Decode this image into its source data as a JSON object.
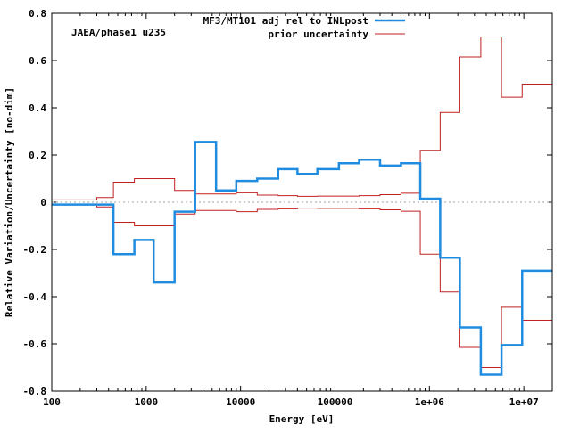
{
  "chart_data": {
    "type": "line",
    "title": "",
    "annotation": "JAEA/phase1 u235",
    "xlabel": "Energy [eV]",
    "ylabel": "Relative Variation/Uncertainty [no-dim]",
    "xscale": "log",
    "xlim": [
      100,
      20000000
    ],
    "ylim": [
      -0.8,
      0.8
    ],
    "x_ticks": [
      {
        "value": 100,
        "label": "100"
      },
      {
        "value": 1000,
        "label": "1000"
      },
      {
        "value": 10000,
        "label": "10000"
      },
      {
        "value": 100000,
        "label": "100000"
      },
      {
        "value": 1000000,
        "label": "1e+06"
      },
      {
        "value": 10000000,
        "label": "1e+07"
      }
    ],
    "y_ticks": [
      {
        "value": 0.8,
        "label": "0.8"
      },
      {
        "value": 0.6,
        "label": "0.6"
      },
      {
        "value": 0.4,
        "label": "0.4"
      },
      {
        "value": 0.2,
        "label": "0.2"
      },
      {
        "value": 0,
        "label": "0"
      },
      {
        "value": -0.2,
        "label": "-0.2"
      },
      {
        "value": -0.4,
        "label": "-0.4"
      },
      {
        "value": -0.6,
        "label": "-0.6"
      },
      {
        "value": -0.8,
        "label": "-0.8"
      }
    ],
    "legend_position": "top-right",
    "bin_edges": [
      100,
      300,
      450,
      750,
      1200,
      2000,
      3300,
      5500,
      9000,
      15000,
      25000,
      40000,
      65000,
      110000,
      180000,
      300000,
      500000,
      800000,
      1300000,
      2100000,
      3500000,
      5800000,
      9600000,
      20000000
    ],
    "series": [
      {
        "name": "MF3/MT101 adj rel to INLpost",
        "color": "#1f8ce0",
        "style": "steps-thick",
        "values": [
          -0.01,
          -0.01,
          -0.22,
          -0.16,
          -0.34,
          -0.04,
          0.255,
          0.05,
          0.09,
          0.1,
          0.14,
          0.12,
          0.14,
          0.165,
          0.18,
          0.155,
          0.165,
          0.015,
          -0.235,
          -0.53,
          -0.73,
          -0.605,
          -0.29
        ]
      },
      {
        "name": "prior uncertainty",
        "color": "#c02020",
        "style": "steps-pm",
        "values": [
          0.01,
          0.02,
          0.085,
          0.1,
          0.1,
          0.05,
          0.035,
          0.035,
          0.04,
          0.03,
          0.028,
          0.025,
          0.026,
          0.026,
          0.028,
          0.032,
          0.038,
          0.22,
          0.38,
          0.615,
          0.7,
          0.445,
          0.5
        ]
      }
    ],
    "colors": {
      "axis": "#000000",
      "zero_line": "#a0a0a0"
    }
  }
}
